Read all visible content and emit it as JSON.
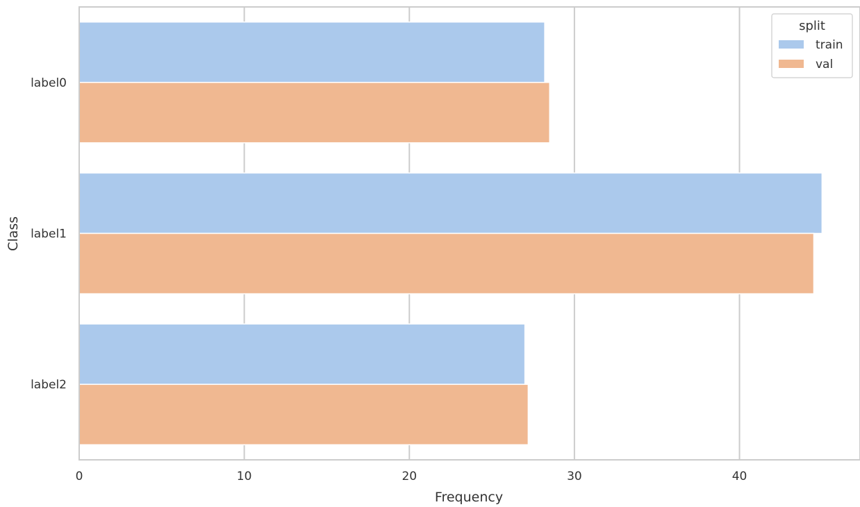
{
  "chart_data": {
    "type": "bar",
    "orientation": "horizontal",
    "categories": [
      "label0",
      "label1",
      "label2"
    ],
    "series": [
      {
        "name": "train",
        "values": [
          28.2,
          45.0,
          27.0
        ],
        "color": "#abc9ec"
      },
      {
        "name": "val",
        "values": [
          28.5,
          44.5,
          27.2
        ],
        "color": "#f0b891"
      }
    ],
    "xlabel": "Frequency",
    "ylabel": "Class",
    "xlim": [
      0,
      47.3
    ],
    "xticks": [
      0,
      10,
      20,
      30,
      40
    ],
    "grid": true,
    "legend": {
      "title": "split",
      "position": "top-right"
    }
  }
}
